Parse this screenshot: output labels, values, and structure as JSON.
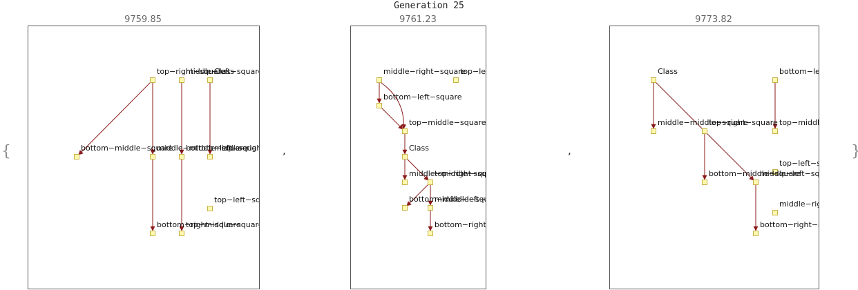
{
  "title": "Generation 25",
  "open_brace": "{",
  "close_brace": "}",
  "separator": ",",
  "panels": [
    {
      "score": "9759.85",
      "nodes": [
        {
          "id": "a1",
          "label": "top−right−square"
        },
        {
          "id": "a2",
          "label": "middle−left−square"
        },
        {
          "id": "a3",
          "label": "Class"
        },
        {
          "id": "a4",
          "label": "bottom−middle−square"
        },
        {
          "id": "a5",
          "label": "middle−middle−square"
        },
        {
          "id": "a6",
          "label": "bottom−left−square"
        },
        {
          "id": "a7",
          "label": "middle−right−square"
        },
        {
          "id": "a8",
          "label": "top−left−square"
        },
        {
          "id": "a9",
          "label": "bottom−right−square"
        },
        {
          "id": "a10",
          "label": "top−middle−square"
        }
      ],
      "edges": [
        [
          "a1",
          "a4"
        ],
        [
          "a1",
          "a5"
        ],
        [
          "a5",
          "a9"
        ],
        [
          "a2",
          "a6"
        ],
        [
          "a6",
          "a10"
        ],
        [
          "a3",
          "a7"
        ]
      ]
    },
    {
      "score": "9761.23",
      "nodes": [
        {
          "id": "b1",
          "label": "middle−right−square"
        },
        {
          "id": "b2",
          "label": "top−left−square"
        },
        {
          "id": "b3",
          "label": "bottom−left−square"
        },
        {
          "id": "b4",
          "label": "top−middle−square"
        },
        {
          "id": "b5",
          "label": "Class"
        },
        {
          "id": "b6",
          "label": "middle−middle−square"
        },
        {
          "id": "b7",
          "label": "top−right−square"
        },
        {
          "id": "b8",
          "label": "bottom−middle−square"
        },
        {
          "id": "b9",
          "label": "middle−left−square"
        },
        {
          "id": "b10",
          "label": "bottom−right−square"
        }
      ],
      "edges": [
        [
          "b1",
          "b3"
        ],
        [
          "b1",
          "b4"
        ],
        [
          "b3",
          "b4"
        ],
        [
          "b4",
          "b5"
        ],
        [
          "b5",
          "b6"
        ],
        [
          "b5",
          "b7"
        ],
        [
          "b7",
          "b8"
        ],
        [
          "b7",
          "b9"
        ],
        [
          "b9",
          "b10"
        ]
      ]
    },
    {
      "score": "9773.82",
      "nodes": [
        {
          "id": "c1",
          "label": "Class"
        },
        {
          "id": "c2",
          "label": "bottom−left−square"
        },
        {
          "id": "c3",
          "label": "middle−middle−square"
        },
        {
          "id": "c4",
          "label": "top−right−square"
        },
        {
          "id": "c5",
          "label": "top−middle−square"
        },
        {
          "id": "c6",
          "label": "top−left−square"
        },
        {
          "id": "c7",
          "label": "bottom−middle−square"
        },
        {
          "id": "c8",
          "label": "middle−left−square"
        },
        {
          "id": "c9",
          "label": "middle−right−square"
        },
        {
          "id": "c10",
          "label": "bottom−right−square"
        }
      ],
      "edges": [
        [
          "c1",
          "c3"
        ],
        [
          "c1",
          "c8"
        ],
        [
          "c2",
          "c5"
        ],
        [
          "c4",
          "c7"
        ],
        [
          "c8",
          "c10"
        ]
      ]
    }
  ]
}
